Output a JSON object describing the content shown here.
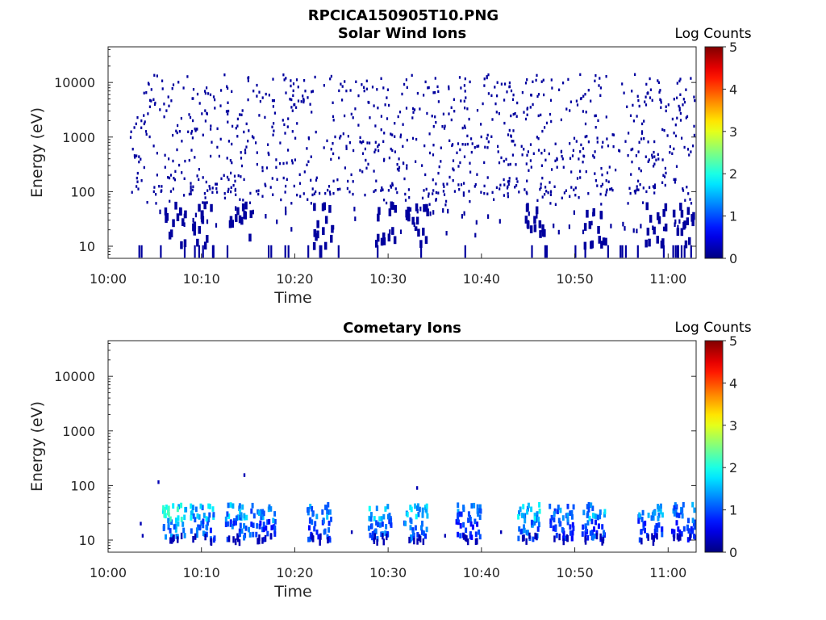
{
  "figure_title": "RPCICA150905T10.PNG",
  "colormap": [
    "#00008f",
    "#0000ff",
    "#00ffff",
    "#ffff00",
    "#ff0000",
    "#800000"
  ],
  "chart_data": [
    {
      "type": "heatmap",
      "title": "Solar Wind Ions",
      "xlabel": "Time",
      "ylabel": "Energy (eV)",
      "y_scale": "log",
      "ylim": [
        6,
        45000
      ],
      "xlim": [
        "10:00",
        "11:03"
      ],
      "x_tick_labels": [
        "10:00",
        "10:10",
        "10:20",
        "10:30",
        "10:40",
        "10:50",
        "11:00"
      ],
      "y_tick_labels": [
        "10",
        "100",
        "1000",
        "10000"
      ],
      "colorbar": {
        "label": "Log Counts",
        "range": [
          0,
          5
        ],
        "tick_labels": [
          "0",
          "1",
          "2",
          "3",
          "4",
          "5"
        ]
      },
      "data_description_points": [
        {
          "time_min": 7.0,
          "energy_eV": 30,
          "log_counts": 0.1
        },
        {
          "time_min": 10.2,
          "energy_eV": 25,
          "log_counts": 0.1
        },
        {
          "time_min": 14.0,
          "energy_eV": 28,
          "log_counts": 0.1
        },
        {
          "time_min": 23.0,
          "energy_eV": 30,
          "log_counts": 0.1
        },
        {
          "time_min": 29.8,
          "energy_eV": 30,
          "log_counts": 0.1
        },
        {
          "time_min": 33.0,
          "energy_eV": 28,
          "log_counts": 0.1
        },
        {
          "time_min": 45.5,
          "energy_eV": 30,
          "log_counts": 0.1
        },
        {
          "time_min": 52.0,
          "energy_eV": 30,
          "log_counts": 0.1
        },
        {
          "time_min": 58.5,
          "energy_eV": 28,
          "log_counts": 0.1
        },
        {
          "time_min": 61.5,
          "energy_eV": 25,
          "log_counts": 0.1
        }
      ]
    },
    {
      "type": "heatmap",
      "title": "Cometary Ions",
      "xlabel": "Time",
      "ylabel": "Energy (eV)",
      "y_scale": "log",
      "ylim": [
        6,
        45000
      ],
      "xlim": [
        "10:00",
        "11:03"
      ],
      "x_tick_labels": [
        "10:00",
        "10:10",
        "10:20",
        "10:30",
        "10:40",
        "10:50",
        "11:00"
      ],
      "y_tick_labels": [
        "10",
        "100",
        "1000",
        "10000"
      ],
      "colorbar": {
        "label": "Log Counts",
        "range": [
          0,
          5
        ],
        "tick_labels": [
          "0",
          "1",
          "2",
          "3",
          "4",
          "5"
        ]
      },
      "data_description_points": [
        {
          "time_min": 7.0,
          "energy_eV": 30,
          "log_counts": 2.2
        },
        {
          "time_min": 10.0,
          "energy_eV": 30,
          "log_counts": 1.8
        },
        {
          "time_min": 13.8,
          "energy_eV": 30,
          "log_counts": 1.8
        },
        {
          "time_min": 16.5,
          "energy_eV": 25,
          "log_counts": 1.5
        },
        {
          "time_min": 22.5,
          "energy_eV": 28,
          "log_counts": 1.6
        },
        {
          "time_min": 29.0,
          "energy_eV": 30,
          "log_counts": 1.8
        },
        {
          "time_min": 32.8,
          "energy_eV": 30,
          "log_counts": 2.0
        },
        {
          "time_min": 38.5,
          "energy_eV": 30,
          "log_counts": 1.4
        },
        {
          "time_min": 45.0,
          "energy_eV": 32,
          "log_counts": 1.9
        },
        {
          "time_min": 48.5,
          "energy_eV": 25,
          "log_counts": 1.5
        },
        {
          "time_min": 52.0,
          "energy_eV": 28,
          "log_counts": 1.7
        },
        {
          "time_min": 58.0,
          "energy_eV": 28,
          "log_counts": 1.6
        },
        {
          "time_min": 61.5,
          "energy_eV": 25,
          "log_counts": 1.5
        }
      ]
    }
  ]
}
